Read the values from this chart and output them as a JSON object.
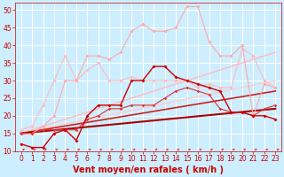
{
  "background_color": "#cceeff",
  "grid_color": "#ffffff",
  "xlabel": "Vent moyen/en rafales ( km/h )",
  "xlabel_color": "#cc0000",
  "xlabel_fontsize": 7,
  "tick_color": "#cc0000",
  "tick_fontsize": 5.5,
  "xlim": [
    -0.5,
    23.5
  ],
  "ylim": [
    10,
    52
  ],
  "yticks": [
    10,
    15,
    20,
    25,
    30,
    35,
    40,
    45,
    50
  ],
  "xticks": [
    0,
    1,
    2,
    3,
    4,
    5,
    6,
    7,
    8,
    9,
    10,
    11,
    12,
    13,
    14,
    15,
    16,
    17,
    18,
    19,
    20,
    21,
    22,
    23
  ],
  "lines": [
    {
      "x": [
        0,
        1,
        2,
        3,
        4,
        5,
        6,
        7,
        8,
        9,
        10,
        11,
        12,
        13,
        14,
        15,
        16,
        17,
        18,
        19,
        20,
        21,
        22,
        23
      ],
      "y": [
        15,
        15,
        17,
        20,
        30,
        30,
        37,
        37,
        36,
        38,
        44,
        46,
        44,
        44,
        45,
        51,
        51,
        41,
        37,
        37,
        40,
        20,
        29,
        28
      ],
      "color": "#ffaaaa",
      "linewidth": 0.8,
      "marker": "D",
      "markersize": 2.0,
      "zorder": 4
    },
    {
      "x": [
        0,
        1,
        2,
        3,
        4,
        5,
        6,
        7,
        8,
        9,
        10,
        11,
        12,
        13,
        14,
        15,
        16,
        17,
        18,
        19,
        20,
        21,
        22,
        23
      ],
      "y": [
        16,
        17,
        23,
        30,
        37,
        30,
        33,
        35,
        30,
        30,
        31,
        30,
        30,
        30,
        30,
        30,
        28,
        29,
        28,
        28,
        39,
        37,
        30,
        28
      ],
      "color": "#ffbbbb",
      "linewidth": 0.8,
      "marker": "D",
      "markersize": 2.0,
      "zorder": 3
    },
    {
      "x": [
        0,
        23
      ],
      "y": [
        15,
        38
      ],
      "color": "#ffbbbb",
      "linewidth": 1.0,
      "marker": null,
      "markersize": 0,
      "zorder": 2
    },
    {
      "x": [
        0,
        23
      ],
      "y": [
        15,
        30
      ],
      "color": "#ffcccc",
      "linewidth": 1.0,
      "marker": null,
      "markersize": 0,
      "zorder": 2
    },
    {
      "x": [
        0,
        1,
        2,
        3,
        4,
        5,
        6,
        7,
        8,
        9,
        10,
        11,
        12,
        13,
        14,
        15,
        16,
        17,
        18,
        19,
        20,
        21,
        22,
        23
      ],
      "y": [
        12,
        11,
        11,
        15,
        16,
        13,
        20,
        23,
        23,
        23,
        30,
        30,
        34,
        34,
        31,
        30,
        29,
        28,
        27,
        21,
        21,
        20,
        20,
        19
      ],
      "color": "#cc0000",
      "linewidth": 1.0,
      "marker": "D",
      "markersize": 2.0,
      "zorder": 6
    },
    {
      "x": [
        0,
        1,
        2,
        3,
        4,
        5,
        6,
        7,
        8,
        9,
        10,
        11,
        12,
        13,
        14,
        15,
        16,
        17,
        18,
        19,
        20,
        21,
        22,
        23
      ],
      "y": [
        15,
        15,
        16,
        16,
        16,
        16,
        19,
        20,
        22,
        22,
        23,
        23,
        23,
        25,
        27,
        28,
        27,
        26,
        22,
        21,
        21,
        20,
        22,
        23
      ],
      "color": "#dd3333",
      "linewidth": 0.8,
      "marker": "D",
      "markersize": 1.8,
      "zorder": 5
    },
    {
      "x": [
        0,
        23
      ],
      "y": [
        15,
        27
      ],
      "color": "#cc2222",
      "linewidth": 1.2,
      "marker": null,
      "markersize": 0,
      "zorder": 3
    },
    {
      "x": [
        0,
        23
      ],
      "y": [
        15,
        22
      ],
      "color": "#aa0000",
      "linewidth": 1.5,
      "marker": null,
      "markersize": 0,
      "zorder": 3
    }
  ],
  "arrow_color": "#cc0000"
}
